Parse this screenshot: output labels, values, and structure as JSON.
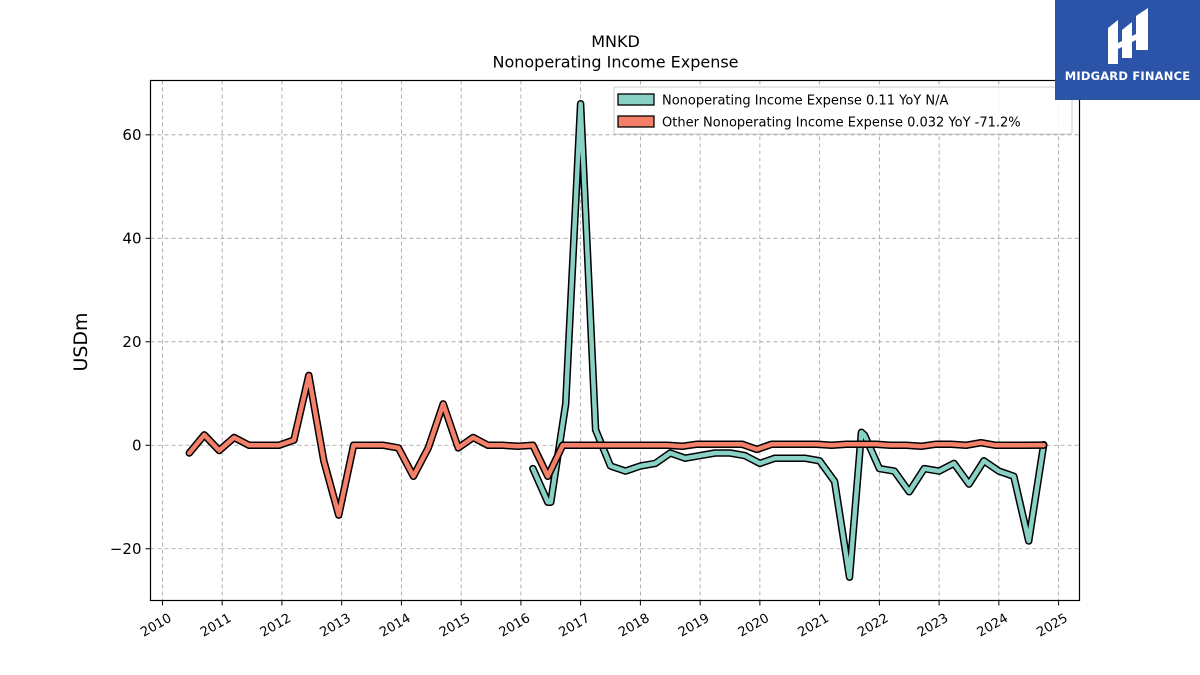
{
  "chart_data": {
    "type": "line",
    "title": "MNKD",
    "subtitle": "Nonoperating Income Expense",
    "ylabel": "USDm",
    "xlabel": "",
    "xlim": [
      2009.8,
      2025.35
    ],
    "ylim": [
      -30,
      70.5
    ],
    "yticks": [
      -20,
      0,
      20,
      40,
      60
    ],
    "ytick_labels": [
      "−20",
      "0",
      "20",
      "40",
      "60"
    ],
    "xticks": [
      2010,
      2011,
      2012,
      2013,
      2014,
      2015,
      2016,
      2017,
      2018,
      2019,
      2020,
      2021,
      2022,
      2023,
      2024,
      2025
    ],
    "xtick_labels": [
      "2010",
      "2011",
      "2012",
      "2013",
      "2014",
      "2015",
      "2016",
      "2017",
      "2018",
      "2019",
      "2020",
      "2021",
      "2022",
      "2023",
      "2024",
      "2025"
    ],
    "grid": true,
    "legend_position": "top-right",
    "series": [
      {
        "name": "Nonoperating Income Expense",
        "legend_label": "Nonoperating Income Expense  0.11 YoY N/A",
        "color": "#88d1c4",
        "x": [
          2016.2,
          2016.45,
          2016.5,
          2016.75,
          2017.0,
          2017.25,
          2017.5,
          2017.75,
          2018.0,
          2018.25,
          2018.5,
          2018.75,
          2019.0,
          2019.25,
          2019.5,
          2019.75,
          2020.0,
          2020.25,
          2020.5,
          2020.75,
          2021.0,
          2021.25,
          2021.5,
          2021.7,
          2021.75,
          2022.0,
          2022.25,
          2022.5,
          2022.75,
          2023.0,
          2023.25,
          2023.5,
          2023.75,
          2024.0,
          2024.25,
          2024.5,
          2024.75
        ],
        "values": [
          -4.5,
          -11.0,
          -11.0,
          8.0,
          66.0,
          3.0,
          -4.0,
          -5.0,
          -4.0,
          -3.5,
          -1.5,
          -2.5,
          -2.0,
          -1.5,
          -1.5,
          -2.0,
          -3.5,
          -2.5,
          -2.5,
          -2.5,
          -3.0,
          -7.0,
          -25.5,
          2.5,
          2.0,
          -4.5,
          -5.0,
          -9.0,
          -4.5,
          -5.0,
          -3.5,
          -7.5,
          -3.0,
          -5.0,
          -6.0,
          -18.5,
          0.11
        ]
      },
      {
        "name": "Other Nonoperating Income Expense",
        "legend_label": "Other Nonoperating Income Expense  0.032 YoY -71.2%",
        "color": "#f4806a",
        "x": [
          2010.45,
          2010.7,
          2010.95,
          2011.2,
          2011.45,
          2011.7,
          2011.95,
          2012.2,
          2012.45,
          2012.7,
          2012.95,
          2013.2,
          2013.45,
          2013.7,
          2013.95,
          2014.2,
          2014.45,
          2014.7,
          2014.95,
          2015.2,
          2015.45,
          2015.7,
          2015.95,
          2016.2,
          2016.45,
          2016.7,
          2016.95,
          2017.2,
          2017.45,
          2017.7,
          2017.95,
          2018.2,
          2018.45,
          2018.7,
          2018.95,
          2019.2,
          2019.45,
          2019.7,
          2019.95,
          2020.2,
          2020.45,
          2020.7,
          2020.95,
          2021.2,
          2021.45,
          2021.7,
          2021.95,
          2022.2,
          2022.45,
          2022.7,
          2022.95,
          2023.2,
          2023.45,
          2023.7,
          2023.95,
          2024.2,
          2024.45,
          2024.75
        ],
        "values": [
          -1.5,
          2.0,
          -1.0,
          1.5,
          0.0,
          0.0,
          0.0,
          1.0,
          13.5,
          -3.0,
          -13.5,
          0.0,
          0.0,
          0.0,
          -0.5,
          -6.0,
          -0.5,
          8.0,
          -0.5,
          1.5,
          0.0,
          0.0,
          -0.2,
          0.0,
          -6.0,
          0.0,
          0.0,
          0.0,
          0.0,
          0.0,
          0.0,
          0.0,
          0.0,
          -0.2,
          0.2,
          0.2,
          0.2,
          0.2,
          -0.8,
          0.2,
          0.2,
          0.2,
          0.2,
          0.0,
          0.2,
          0.2,
          0.2,
          0.0,
          0.0,
          -0.2,
          0.2,
          0.2,
          0.0,
          0.5,
          0.0,
          0.0,
          0.0,
          0.032
        ]
      }
    ]
  },
  "logo": {
    "name": "MIDGARD FINANCE",
    "bg_color": "#2b54a9",
    "text_color": "#ffffff"
  }
}
